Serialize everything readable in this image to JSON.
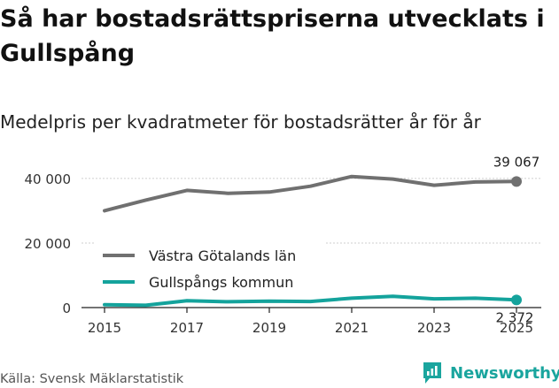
{
  "header": {
    "title": "Så har bostadsrättspriserna utvecklats i Gullspång",
    "subtitle": "Medelpris per kvadratmeter för bostadsrätter år för år"
  },
  "footer": {
    "source": "Källa: Svensk Mäklarstatistik",
    "brand": "Newsworthy"
  },
  "colors": {
    "series_vastra": "#707070",
    "series_gullspang": "#14a39c",
    "brand": "#1aa59e"
  },
  "chart_data": {
    "type": "line",
    "title": "Medelpris per kvadratmeter för bostadsrätter år för år",
    "xlabel": "",
    "ylabel": "",
    "x": [
      2015,
      2016,
      2017,
      2018,
      2019,
      2020,
      2021,
      2022,
      2023,
      2024,
      2025
    ],
    "xticks": [
      "2015",
      "2017",
      "2019",
      "2021",
      "2023",
      "2025"
    ],
    "yticks": [
      0,
      20000,
      40000
    ],
    "ytick_labels": [
      "0",
      "20 000",
      "40 000"
    ],
    "ylim": [
      0,
      46000
    ],
    "xlim": [
      2015,
      2025
    ],
    "grid": "horizontal",
    "legend_position": "middle-left",
    "series": [
      {
        "name": "Västra Götalands län",
        "values": [
          30000,
          33300,
          36300,
          35400,
          35800,
          37600,
          40600,
          39800,
          37900,
          38900,
          39067
        ],
        "end_label": "39 067"
      },
      {
        "name": "Gullspångs kommun",
        "values": [
          900,
          700,
          2100,
          1800,
          2000,
          1900,
          2900,
          3500,
          2700,
          2900,
          2372
        ],
        "end_label": "2 372"
      }
    ]
  }
}
